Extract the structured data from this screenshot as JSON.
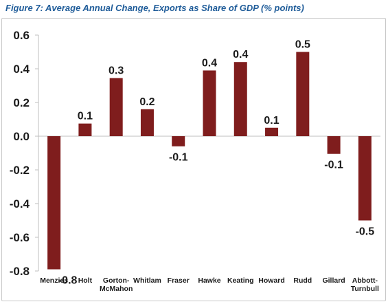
{
  "figure": {
    "title": "Figure 7: Average Annual Change, Exports as Share of GDP (% points)"
  },
  "chart_data": {
    "type": "bar",
    "title": "Figure 7: Average Annual Change, Exports as Share of GDP (% points)",
    "xlabel": "",
    "ylabel": "",
    "categories": [
      "Menzies",
      "Holt",
      "Gorton-McMahon",
      "Whitlam",
      "Fraser",
      "Hawke",
      "Keating",
      "Howard",
      "Rudd",
      "Gillard",
      "Abbott-Turnbull"
    ],
    "category_lines": [
      [
        "Menzies"
      ],
      [
        "Holt"
      ],
      [
        "Gorton-",
        "McMahon"
      ],
      [
        "Whitlam"
      ],
      [
        "Fraser"
      ],
      [
        "Hawke"
      ],
      [
        "Keating"
      ],
      [
        "Howard"
      ],
      [
        "Rudd"
      ],
      [
        "Gillard"
      ],
      [
        "Abbott-",
        "Turnbull"
      ]
    ],
    "values": [
      -0.79,
      0.075,
      0.345,
      0.16,
      -0.06,
      0.39,
      0.44,
      0.05,
      0.5,
      -0.105,
      -0.5
    ],
    "data_labels": [
      "-0.8",
      "0.1",
      "0.3",
      "0.2",
      "-0.1",
      "0.4",
      "0.4",
      "0.1",
      "0.5",
      "-0.1",
      "-0.5"
    ],
    "ylim": [
      -0.8,
      0.6
    ],
    "yticks": [
      -0.8,
      -0.6,
      -0.4,
      -0.2,
      0.0,
      0.2,
      0.4,
      0.6
    ],
    "ytick_labels": [
      "-0.8",
      "-0.6",
      "-0.4",
      "-0.2",
      "0.0",
      "0.2",
      "0.4",
      "0.6"
    ],
    "grid": false,
    "legend": "none",
    "colors": {
      "bar": "#7f1d1d",
      "axis": "#bfbfbf",
      "title": "#1f5c99"
    }
  }
}
